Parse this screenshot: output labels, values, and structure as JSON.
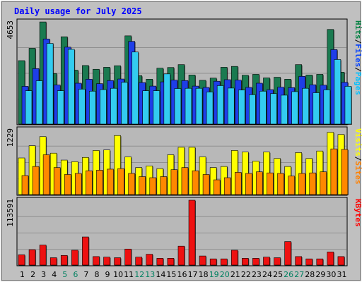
{
  "chart_data": [
    {
      "type": "bar",
      "title": "Daily usage for July 2025",
      "panel": "hits-files-pages",
      "y_max_label": "4653",
      "ylim": [
        0,
        4653
      ],
      "grid": true,
      "legend_right": [
        {
          "text": "Pages",
          "color": "#00c0ff"
        },
        {
          "text": "Files",
          "color": "#0040ff"
        },
        {
          "text": "Hits",
          "color": "#008040"
        }
      ],
      "categories": [
        "1",
        "2",
        "3",
        "4",
        "5",
        "6",
        "7",
        "8",
        "9",
        "10",
        "11",
        "12",
        "13",
        "14",
        "15",
        "16",
        "17",
        "18",
        "19",
        "20",
        "21",
        "22",
        "23",
        "24",
        "25",
        "26",
        "27",
        "28",
        "29",
        "30",
        "31"
      ],
      "series": [
        {
          "name": "Hits",
          "color": "#1a7a50",
          "values": [
            2900,
            3460,
            4650,
            2320,
            3980,
            2470,
            2680,
            2510,
            2600,
            2670,
            4020,
            2220,
            2060,
            2560,
            2590,
            2720,
            2250,
            2010,
            2110,
            2600,
            2640,
            2240,
            2280,
            2120,
            2150,
            2060,
            2720,
            2250,
            2280,
            4310,
            2380
          ]
        },
        {
          "name": "Files",
          "color": "#1e3ee8",
          "values": [
            1740,
            2540,
            3880,
            1800,
            3510,
            1880,
            2060,
            1860,
            2000,
            2070,
            3770,
            1910,
            1750,
            1940,
            2020,
            2000,
            1750,
            1690,
            1970,
            2040,
            2020,
            1690,
            1880,
            1590,
            1700,
            1680,
            2190,
            1810,
            1790,
            3400,
            1920
          ]
        },
        {
          "name": "Pages",
          "color": "#33ccf0",
          "values": [
            1540,
            1990,
            3680,
            1540,
            3410,
            1610,
            1520,
            1590,
            1650,
            1920,
            3290,
            1540,
            1540,
            2300,
            1640,
            1650,
            1650,
            1480,
            1770,
            1660,
            1570,
            1360,
            1520,
            1410,
            1340,
            1500,
            1650,
            1450,
            1580,
            2950,
            1740
          ]
        }
      ]
    },
    {
      "type": "bar",
      "panel": "visits-sites",
      "y_max_label": "1229",
      "ylim": [
        0,
        1229
      ],
      "grid": true,
      "legend_right": [
        {
          "text": "Sites",
          "color": "#ff8000"
        },
        {
          "text": "Visits",
          "color": "#ffff00"
        }
      ],
      "categories": [
        "1",
        "2",
        "3",
        "4",
        "5",
        "6",
        "7",
        "8",
        "9",
        "10",
        "11",
        "12",
        "13",
        "14",
        "15",
        "16",
        "17",
        "18",
        "19",
        "20",
        "21",
        "22",
        "23",
        "24",
        "25",
        "26",
        "27",
        "28",
        "29",
        "30",
        "31"
      ],
      "series": [
        {
          "name": "Visits",
          "color": "#ffff00",
          "values": [
            700,
            930,
            1100,
            790,
            660,
            630,
            710,
            840,
            850,
            1120,
            720,
            520,
            550,
            500,
            760,
            900,
            900,
            720,
            520,
            540,
            840,
            810,
            640,
            810,
            690,
            540,
            800,
            690,
            830,
            1180,
            1140
          ]
        },
        {
          "name": "Sites",
          "color": "#ff8800",
          "values": [
            370,
            540,
            760,
            520,
            390,
            410,
            460,
            470,
            490,
            500,
            410,
            350,
            330,
            350,
            480,
            520,
            460,
            390,
            290,
            330,
            430,
            410,
            440,
            420,
            410,
            360,
            410,
            420,
            440,
            870,
            860
          ]
        }
      ]
    },
    {
      "type": "bar",
      "panel": "kbytes",
      "y_max_label": "113591",
      "ylim": [
        0,
        113591
      ],
      "grid": true,
      "legend_right": [
        {
          "text": "KBytes",
          "color": "#ff0000"
        }
      ],
      "categories": [
        "1",
        "2",
        "3",
        "4",
        "5",
        "6",
        "7",
        "8",
        "9",
        "10",
        "11",
        "12",
        "13",
        "14",
        "15",
        "16",
        "17",
        "18",
        "19",
        "20",
        "21",
        "22",
        "23",
        "24",
        "25",
        "26",
        "27",
        "28",
        "29",
        "30",
        "31"
      ],
      "series": [
        {
          "name": "KBytes",
          "color": "#ee1111",
          "values": [
            19000,
            28000,
            36000,
            14000,
            18000,
            27000,
            50000,
            16000,
            15000,
            14000,
            29000,
            15000,
            20000,
            13000,
            13000,
            34000,
            113591,
            17000,
            12000,
            12000,
            27000,
            13000,
            13000,
            15000,
            14000,
            42000,
            16000,
            12000,
            12000,
            24000,
            16000
          ]
        }
      ]
    }
  ],
  "x_day_labels": [
    {
      "text": "1",
      "weekend": false
    },
    {
      "text": "2",
      "weekend": false
    },
    {
      "text": "3",
      "weekend": false
    },
    {
      "text": "4",
      "weekend": false
    },
    {
      "text": "5",
      "weekend": true
    },
    {
      "text": "6",
      "weekend": true
    },
    {
      "text": "7",
      "weekend": false
    },
    {
      "text": "8",
      "weekend": false
    },
    {
      "text": "9",
      "weekend": false
    },
    {
      "text": "10",
      "weekend": false
    },
    {
      "text": "11",
      "weekend": false
    },
    {
      "text": "12",
      "weekend": true
    },
    {
      "text": "13",
      "weekend": true
    },
    {
      "text": "14",
      "weekend": false
    },
    {
      "text": "15",
      "weekend": false
    },
    {
      "text": "16",
      "weekend": false
    },
    {
      "text": "17",
      "weekend": false
    },
    {
      "text": "18",
      "weekend": false
    },
    {
      "text": "19",
      "weekend": true
    },
    {
      "text": "20",
      "weekend": true
    },
    {
      "text": "21",
      "weekend": false
    },
    {
      "text": "22",
      "weekend": false
    },
    {
      "text": "23",
      "weekend": false
    },
    {
      "text": "24",
      "weekend": false
    },
    {
      "text": "25",
      "weekend": false
    },
    {
      "text": "26",
      "weekend": true
    },
    {
      "text": "27",
      "weekend": true
    },
    {
      "text": "28",
      "weekend": false
    },
    {
      "text": "29",
      "weekend": false
    },
    {
      "text": "30",
      "weekend": false
    },
    {
      "text": "31",
      "weekend": false
    }
  ],
  "colors": {
    "background": "#c0c0c0",
    "plot_background": "#b8b8b8",
    "title": "#0000ff",
    "weekday_label": "#000000",
    "weekend_label": "#008060",
    "gridline": "#909090"
  }
}
